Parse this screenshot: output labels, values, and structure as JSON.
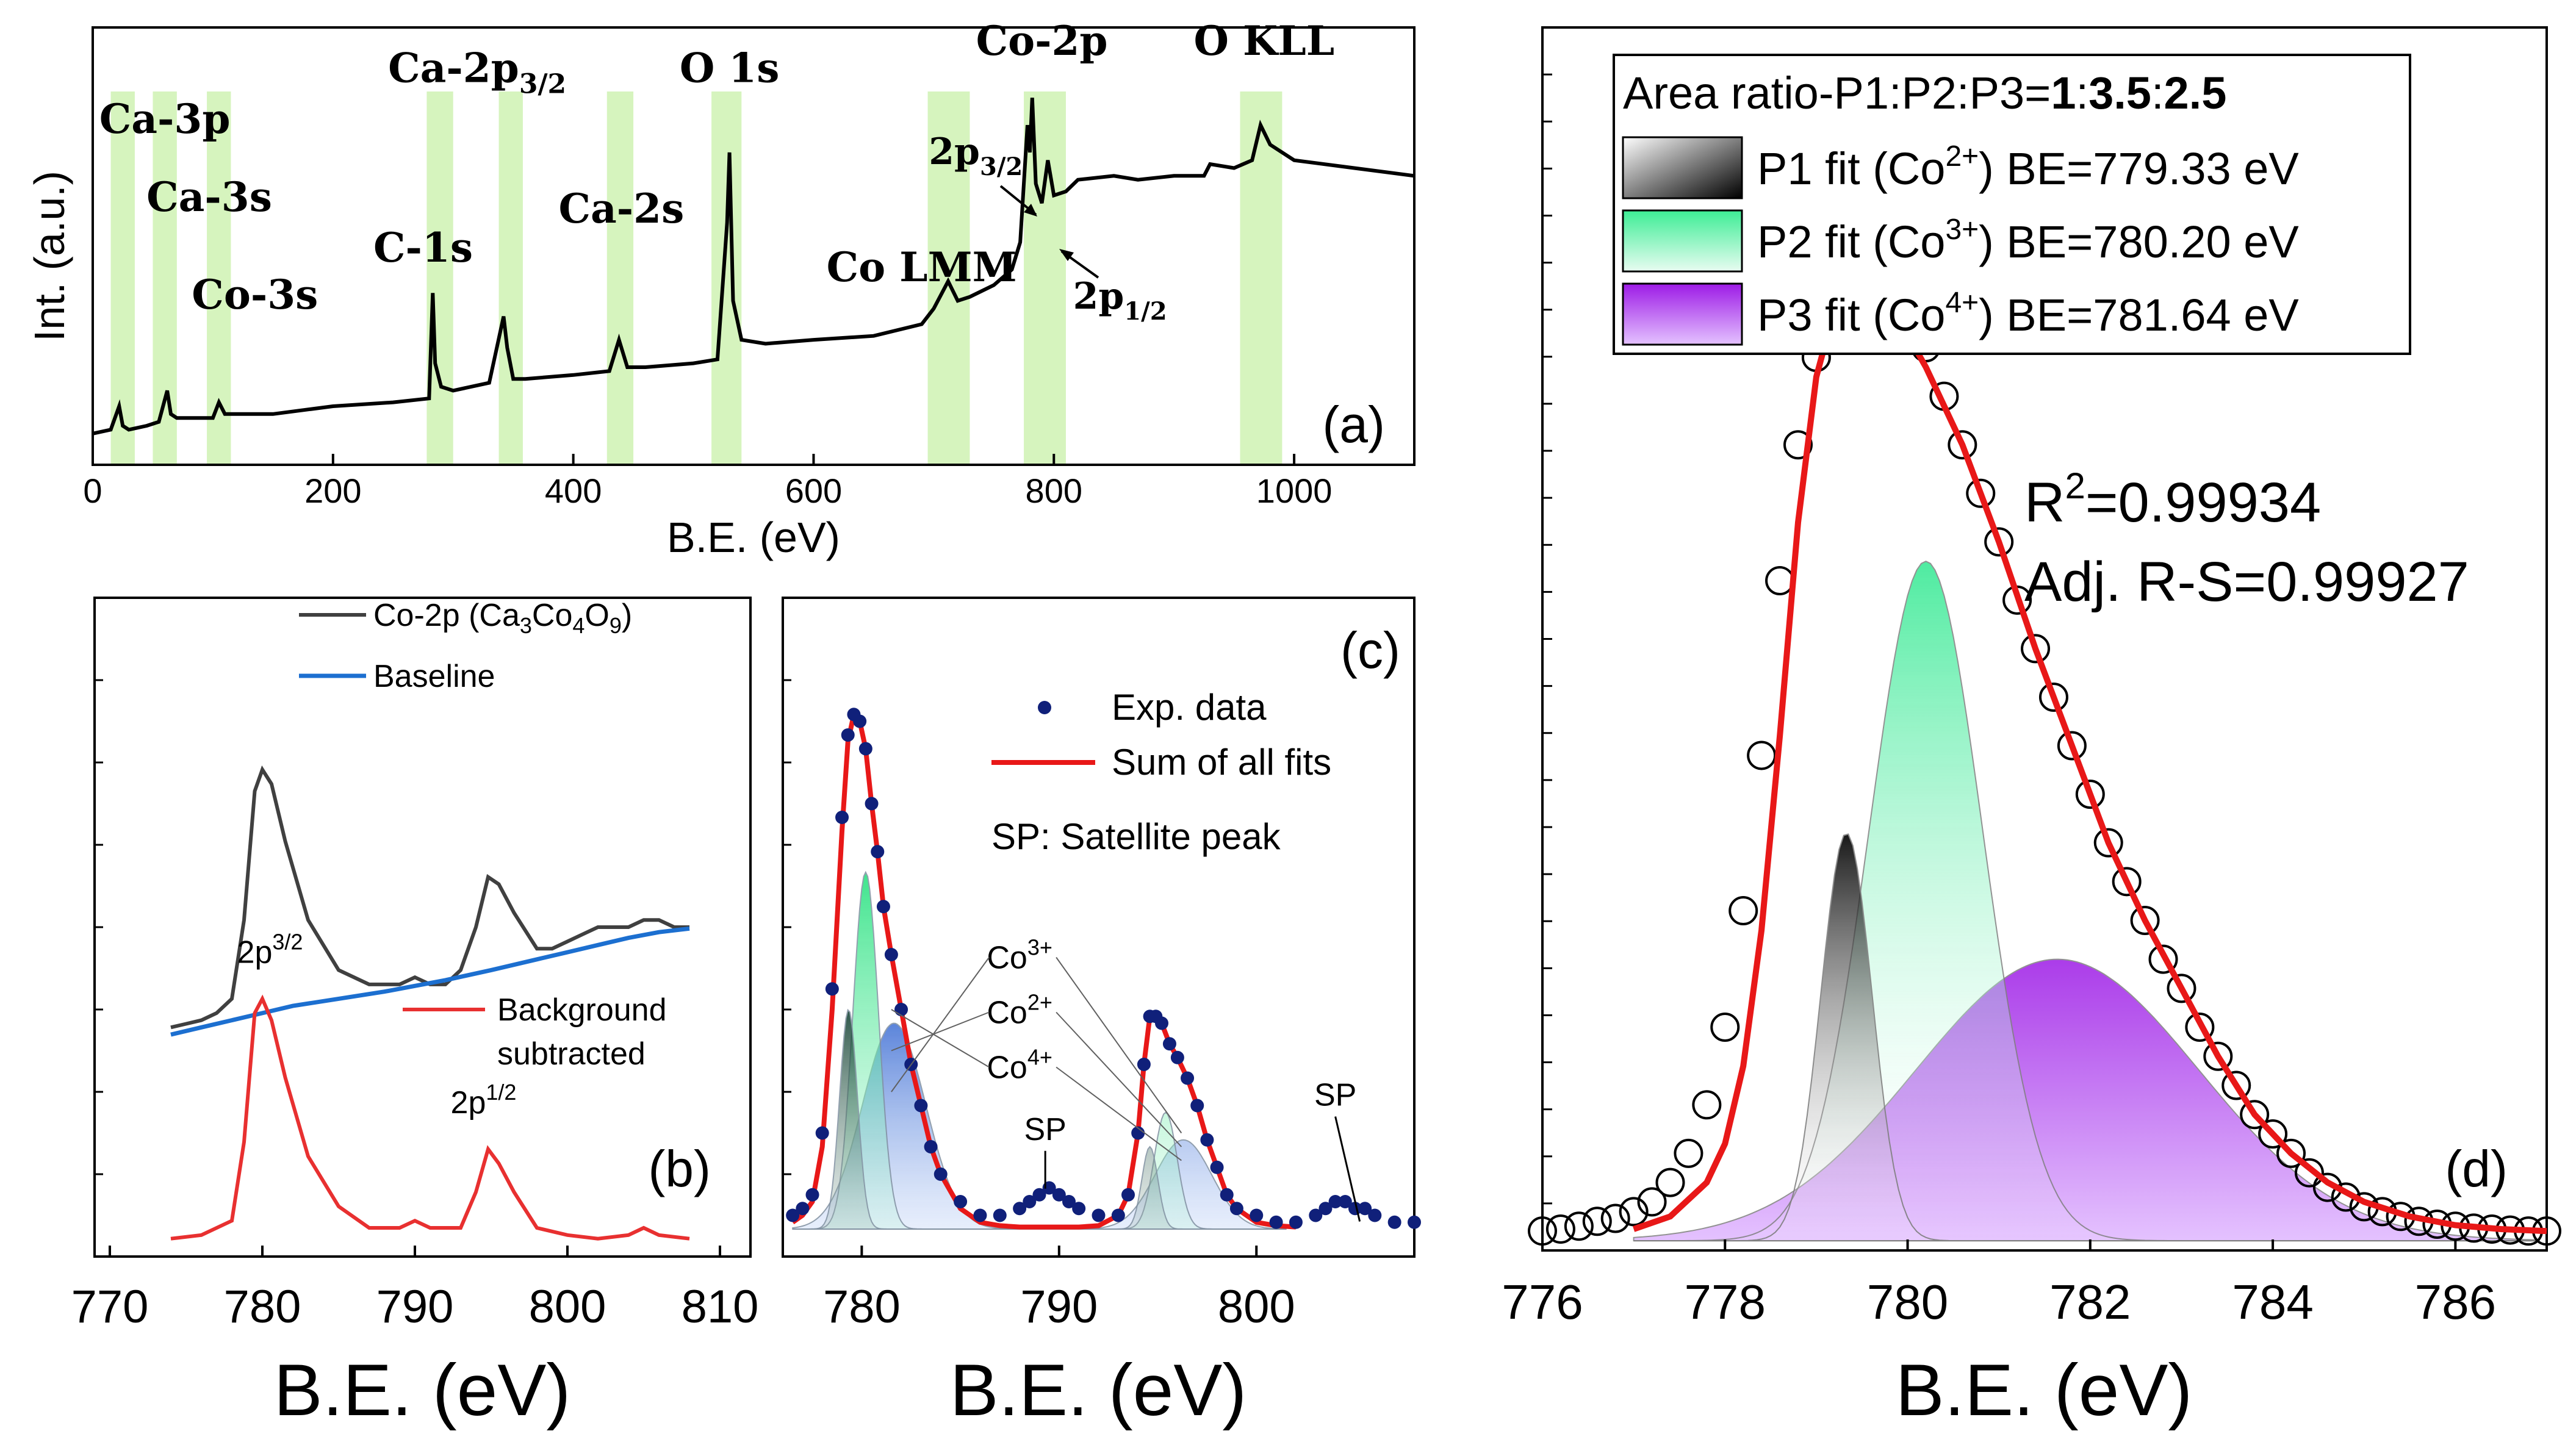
{
  "colors": {
    "axis": "#000000",
    "highlight": "#c8f0a8",
    "raw": "#404040",
    "baseline": "#1c6fd0",
    "subtracted": "#e83030",
    "fit_sum": "#e81818",
    "exp": "#10207a",
    "p1": "#101010",
    "p2": "#30e890",
    "p3": "#9d1be6",
    "p3c": "#3f6fd4"
  },
  "chart_data": [
    {
      "id": "a",
      "type": "line",
      "panel_label": "(a)",
      "xlabel": "B.E. (eV)",
      "ylabel": "Int. (a.u.)",
      "xlim": [
        0,
        1100
      ],
      "ylim": [
        0,
        100
      ],
      "xticks": [
        0,
        200,
        400,
        600,
        800,
        1000
      ],
      "xtick_labels": [
        "0",
        "200",
        "400",
        "600",
        "800",
        "1000"
      ],
      "highlight_bands": [
        [
          15,
          35
        ],
        [
          50,
          70
        ],
        [
          95,
          115
        ],
        [
          278,
          300
        ],
        [
          338,
          358
        ],
        [
          428,
          450
        ],
        [
          515,
          540
        ],
        [
          695,
          730
        ],
        [
          775,
          810
        ],
        [
          955,
          990
        ]
      ],
      "annotations": [
        {
          "text": "Ca-3p",
          "x": 60,
          "y": 83
        },
        {
          "text": "Ca-3s",
          "x": 97,
          "y": 63
        },
        {
          "text": "Co-3s",
          "x": 135,
          "y": 38
        },
        {
          "text": "C-1s",
          "x": 275,
          "y": 50
        },
        {
          "text": "Ca-2p",
          "sub": "3/2",
          "x": 320,
          "y": 96
        },
        {
          "text": "O 1s",
          "x": 530,
          "y": 96
        },
        {
          "text": "Ca-2s",
          "x": 440,
          "y": 60
        },
        {
          "text": "Co LMM",
          "x": 690,
          "y": 45
        },
        {
          "text": "Co-2p",
          "x": 790,
          "y": 103
        },
        {
          "text": "O KLL",
          "x": 975,
          "y": 103
        }
      ],
      "sub_labels": [
        {
          "text": "2p",
          "sub": "3/2",
          "x": 735,
          "y": 75
        },
        {
          "text": "2p",
          "sub": "1/2",
          "x": 855,
          "y": 38
        }
      ],
      "series": [
        {
          "name": "Survey spectrum",
          "x": [
            0,
            15,
            22,
            25,
            30,
            45,
            55,
            62,
            65,
            70,
            100,
            105,
            110,
            150,
            200,
            250,
            280,
            283,
            285,
            290,
            300,
            330,
            342,
            345,
            350,
            360,
            400,
            430,
            438,
            445,
            460,
            500,
            520,
            528,
            530,
            533,
            540,
            560,
            600,
            650,
            690,
            700,
            712,
            720,
            730,
            750,
            765,
            772,
            778,
            780,
            782,
            785,
            790,
            795,
            800,
            810,
            820,
            850,
            870,
            900,
            925,
            930,
            950,
            965,
            972,
            980,
            1000,
            1050,
            1100
          ],
          "y": [
            6,
            7,
            13,
            8,
            7,
            8,
            9,
            17,
            11,
            10,
            10,
            14,
            11,
            11,
            13,
            14,
            15,
            42,
            24,
            18,
            17,
            19,
            36,
            28,
            20,
            20,
            21,
            22,
            30,
            23,
            23,
            24,
            25,
            60,
            78,
            40,
            30,
            29,
            30,
            31,
            34,
            38,
            45,
            40,
            41,
            44,
            48,
            55,
            85,
            78,
            92,
            70,
            65,
            76,
            67,
            68,
            71,
            72,
            71,
            72,
            72,
            75,
            74,
            76,
            85,
            80,
            76,
            74,
            72
          ]
        }
      ]
    },
    {
      "id": "b",
      "type": "line",
      "panel_label": "(b)",
      "xlabel": "B.E. (eV)",
      "xlim": [
        769,
        812
      ],
      "ylim": [
        0,
        100
      ],
      "xticks": [
        770,
        780,
        790,
        800,
        810
      ],
      "xtick_labels": [
        "770",
        "780",
        "790",
        "800",
        "810"
      ],
      "legend": [
        {
          "label": "Co-2p (Ca",
          "sub1": "3",
          "mid1": "Co",
          "sub2": "4",
          "mid2": "O",
          "sub3": "9",
          "end": ")"
        },
        {
          "label": "Baseline"
        },
        {
          "label": "Background",
          "label2": "subtracted"
        }
      ],
      "annotations": [
        {
          "text": "2p",
          "sup": "3/2",
          "x": 780.5,
          "y": 39
        },
        {
          "text": "2p",
          "sup": "1/2",
          "x": 794.5,
          "y": 18
        }
      ],
      "series": [
        {
          "name": "Co-2p (Ca3Co4O9)",
          "x": [
            774,
            775,
            776,
            777,
            778,
            778.8,
            779.5,
            780,
            780.6,
            781.5,
            783,
            785,
            787,
            788,
            789,
            790,
            791,
            792,
            793,
            794,
            794.8,
            795.5,
            796.5,
            798,
            799,
            800,
            801,
            802,
            803,
            804,
            805,
            806,
            807,
            808
          ],
          "x_note": "",
          "y": [
            30,
            30.5,
            31,
            32,
            34,
            45,
            63,
            66,
            64,
            56,
            45,
            38,
            36,
            36,
            36,
            37,
            36,
            36,
            38,
            44,
            51,
            50,
            46,
            41,
            41,
            42,
            43,
            44,
            44,
            44,
            45,
            45,
            44,
            44
          ]
        },
        {
          "name": "Baseline",
          "x": [
            774,
            776,
            778,
            780,
            782,
            785,
            788,
            790,
            792,
            795,
            798,
            800,
            802,
            804,
            806,
            808
          ],
          "y": [
            29,
            30,
            31,
            32,
            33,
            34,
            35,
            35.8,
            36.6,
            38,
            39.5,
            40.5,
            41.5,
            42.5,
            43.3,
            43.8
          ]
        },
        {
          "name": "Background subtracted",
          "x": [
            774,
            776,
            778,
            778.8,
            779.5,
            780,
            780.6,
            781.5,
            783,
            785,
            787,
            789,
            790,
            791,
            793,
            794,
            794.8,
            795.5,
            796.5,
            798,
            800,
            802,
            804,
            805,
            806,
            808
          ],
          "y": [
            0.5,
            1,
            3,
            14,
            32,
            34,
            31,
            23,
            12,
            5,
            2,
            2,
            3,
            2,
            2,
            7,
            13,
            11,
            7,
            2,
            1,
            0.5,
            1,
            2,
            1,
            0.5
          ]
        }
      ]
    },
    {
      "id": "c",
      "type": "line",
      "panel_label": "(c)",
      "xlabel": "B.E. (eV)",
      "xlim": [
        776,
        808
      ],
      "ylim": [
        0,
        100
      ],
      "xticks": [
        780,
        790,
        800
      ],
      "xtick_labels": [
        "780",
        "790",
        "800"
      ],
      "legend": [
        {
          "label": "Exp. data"
        },
        {
          "label": "Sum of all fits"
        },
        {
          "label": "SP: Satellite peak"
        }
      ],
      "annotations": [
        {
          "text": "Co",
          "sup": "3+",
          "x": 788,
          "y": 38
        },
        {
          "text": "Co",
          "sup": "2+",
          "x": 788,
          "y": 30
        },
        {
          "text": "Co",
          "sup": "4+",
          "x": 788,
          "y": 22
        },
        {
          "text": "SP",
          "x": 789.3,
          "y": 13
        },
        {
          "text": "SP",
          "x": 804,
          "y": 18
        }
      ],
      "series": [
        {
          "name": "Exp. data",
          "x": [
            776.5,
            777,
            777.5,
            778,
            778.5,
            779,
            779.3,
            779.6,
            779.9,
            780.2,
            780.5,
            780.8,
            781.1,
            781.5,
            782,
            782.5,
            783,
            783.5,
            784,
            785,
            786,
            787,
            788,
            788.5,
            789,
            789.5,
            790,
            790.5,
            791,
            792,
            793,
            793.5,
            794,
            794.3,
            794.6,
            794.9,
            795.2,
            795.6,
            796,
            796.5,
            797,
            797.5,
            798,
            798.5,
            799,
            800,
            801,
            802,
            803,
            803.5,
            804,
            804.5,
            805,
            805.5,
            806,
            807,
            808
          ],
          "y": [
            2,
            3,
            5,
            14,
            35,
            60,
            72,
            75,
            74,
            70,
            62,
            55,
            47,
            40,
            32,
            24,
            18,
            12,
            8,
            4,
            2,
            2,
            3,
            4,
            5,
            6,
            5,
            4,
            3,
            2,
            2,
            5,
            14,
            24,
            31,
            31,
            30,
            27,
            25,
            22,
            18,
            13,
            9,
            5,
            3,
            2,
            1,
            1,
            2,
            3,
            4,
            4,
            3,
            3,
            2,
            1,
            1
          ]
        },
        {
          "name": "Sum of all fits",
          "x": [
            776.5,
            777,
            777.5,
            778,
            778.5,
            779,
            779.3,
            779.6,
            779.9,
            780.2,
            780.5,
            780.8,
            781.1,
            781.5,
            782,
            782.5,
            783,
            783.5,
            784,
            785,
            786,
            787,
            788,
            789,
            790,
            791,
            792,
            793,
            793.5,
            794,
            794.3,
            794.6,
            794.9,
            795.2,
            795.6,
            796,
            796.5,
            797,
            797.5,
            798,
            798.5,
            799,
            800,
            801,
            802
          ],
          "y": [
            1,
            2,
            4,
            12,
            32,
            58,
            71,
            75,
            74,
            70,
            62,
            55,
            47,
            40,
            32,
            24,
            18,
            12,
            8,
            3,
            1,
            0.5,
            0.3,
            0.3,
            0.3,
            0.3,
            0.5,
            2,
            5,
            14,
            24,
            31,
            31,
            30,
            27,
            25,
            22,
            18,
            13,
            9,
            5,
            3,
            1,
            0.5,
            0.3
          ]
        }
      ],
      "components": [
        {
          "name": "Co2+",
          "center": 779.33,
          "height": 32,
          "sigma": 0.45,
          "center2": 794.6,
          "height2": 12
        },
        {
          "name": "Co3+",
          "center": 780.2,
          "height": 52,
          "sigma": 0.65,
          "center2": 795.4,
          "height2": 17
        },
        {
          "name": "Co4+",
          "center": 781.64,
          "height": 30,
          "sigma": 1.6,
          "center2": 796.3,
          "height2": 13
        }
      ]
    },
    {
      "id": "d",
      "type": "line",
      "panel_label": "(d)",
      "xlabel": "B.E. (eV)",
      "xlim": [
        776,
        787
      ],
      "ylim": [
        0,
        100
      ],
      "xticks": [
        776,
        778,
        780,
        782,
        784,
        786
      ],
      "xtick_labels": [
        "776",
        "778",
        "780",
        "782",
        "784",
        "786"
      ],
      "area_ratio": {
        "prefix": "Area ratio-P1:P2:P3=",
        "p1": "1",
        "sep1": ":",
        "p2": "3.5",
        "sep2": ":",
        "p3": "2.5"
      },
      "legend": [
        {
          "label": "P1 fit (Co",
          "sup": "2+",
          "end": ") BE=779.33 eV"
        },
        {
          "label": "P2 fit (Co",
          "sup": "3+",
          "end": ") BE=780.20 eV"
        },
        {
          "label": "P3 fit (Co",
          "sup": "4+",
          "end": ") BE=781.64 eV"
        }
      ],
      "stats": {
        "r2_prefix": "R",
        "r2_sup": "2",
        "r2_value": "=0.99934",
        "adj": "Adj. R-S=0.99927"
      },
      "series": [
        {
          "name": "Exp. data",
          "x": [
            776.0,
            776.2,
            776.4,
            776.6,
            776.8,
            777.0,
            777.2,
            777.4,
            777.6,
            777.8,
            778.0,
            778.2,
            778.4,
            778.6,
            778.8,
            779.0,
            779.2,
            779.4,
            779.6,
            779.8,
            780.0,
            780.2,
            780.4,
            780.6,
            780.8,
            781.0,
            781.2,
            781.4,
            781.6,
            781.8,
            782.0,
            782.2,
            782.4,
            782.6,
            782.8,
            783.0,
            783.2,
            783.4,
            783.6,
            783.8,
            784.0,
            784.2,
            784.4,
            784.6,
            784.8,
            785.0,
            785.2,
            785.4,
            785.6,
            785.8,
            786.0,
            786.2,
            786.4,
            786.6,
            786.8,
            787.0
          ],
          "y": [
            1,
            1.2,
            1.5,
            2,
            2.3,
            3,
            4,
            6,
            9,
            14,
            22,
            34,
            50,
            68,
            82,
            91,
            97,
            100,
            100,
            98,
            96,
            92,
            87,
            82,
            77,
            72,
            66,
            61,
            56,
            51,
            46,
            41,
            37,
            33,
            29,
            26,
            22,
            19,
            16,
            13,
            11,
            9,
            7,
            5.5,
            4.5,
            3.5,
            3,
            2.5,
            2,
            1.7,
            1.5,
            1.3,
            1.2,
            1.1,
            1,
            1
          ]
        },
        {
          "name": "Sum of fits",
          "x": [
            777.0,
            777.4,
            777.8,
            778.0,
            778.2,
            778.4,
            778.6,
            778.8,
            779.0,
            779.2,
            779.4,
            779.55,
            779.7,
            779.9,
            780.2,
            780.6,
            781.0,
            781.4,
            781.8,
            782.2,
            782.6,
            783.0,
            783.4,
            783.8,
            784.2,
            784.6,
            785.0,
            785.5,
            786.0,
            786.5,
            787.0
          ],
          "y": [
            1.2,
            2.5,
            6,
            10,
            18,
            32,
            52,
            74,
            89,
            96,
            99,
            100,
            98,
            95,
            90,
            82,
            72,
            61,
            51,
            41,
            33,
            26,
            19,
            13,
            9,
            6,
            4,
            2.5,
            1.6,
            1.2,
            1
          ]
        }
      ],
      "components": [
        {
          "name": "P1 (Co2+)",
          "center": 779.33,
          "height": 42,
          "sigma": 0.28
        },
        {
          "name": "P2 (Co3+)",
          "center": 780.2,
          "height": 70,
          "sigma": 0.62
        },
        {
          "name": "P3 (Co4+)",
          "center": 781.64,
          "height": 29,
          "sigma": 1.55
        }
      ]
    }
  ]
}
